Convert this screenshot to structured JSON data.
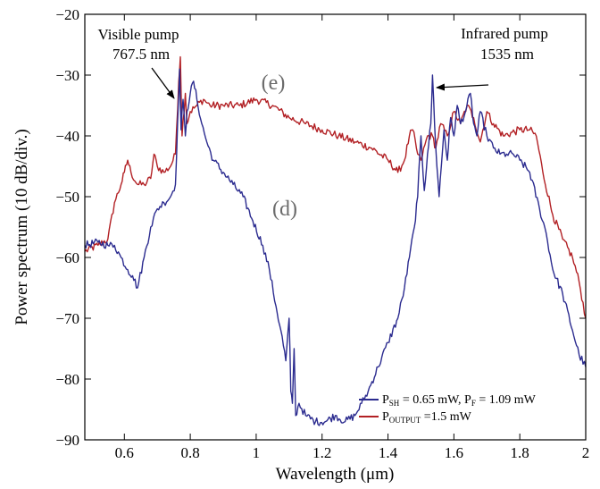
{
  "chart_data": {
    "type": "line",
    "xlabel": "Wavelength (μm)",
    "ylabel": "Power spectrum (10 dB/div.)",
    "xlim": [
      0.48,
      2.0
    ],
    "ylim": [
      -90,
      -20
    ],
    "xticks": [
      {
        "v": 0.6,
        "label": "0.6"
      },
      {
        "v": 0.8,
        "label": "0.8"
      },
      {
        "v": 1.0,
        "label": "1"
      },
      {
        "v": 1.2,
        "label": "1.2"
      },
      {
        "v": 1.4,
        "label": "1.4"
      },
      {
        "v": 1.6,
        "label": "1.6"
      },
      {
        "v": 1.8,
        "label": "1.8"
      },
      {
        "v": 2.0,
        "label": "2"
      }
    ],
    "yticks": [
      {
        "v": -20,
        "label": "−20"
      },
      {
        "v": -30,
        "label": "−30"
      },
      {
        "v": -40,
        "label": "−40"
      },
      {
        "v": -50,
        "label": "−50"
      },
      {
        "v": -60,
        "label": "−60"
      },
      {
        "v": -70,
        "label": "−70"
      },
      {
        "v": -80,
        "label": "−80"
      },
      {
        "v": -90,
        "label": "−90"
      }
    ],
    "grid": false,
    "series": [
      {
        "id": "d",
        "color": "#2b2b8f",
        "x": [
          0.48,
          0.52,
          0.55,
          0.57,
          0.59,
          0.61,
          0.625,
          0.64,
          0.66,
          0.68,
          0.7,
          0.72,
          0.74,
          0.755,
          0.765,
          0.7675,
          0.772,
          0.778,
          0.785,
          0.79,
          0.8,
          0.81,
          0.82,
          0.835,
          0.85,
          0.87,
          0.9,
          0.93,
          0.96,
          0.99,
          1.02,
          1.04,
          1.06,
          1.075,
          1.09,
          1.1,
          1.105,
          1.11,
          1.115,
          1.12,
          1.13,
          1.15,
          1.18,
          1.21,
          1.24,
          1.27,
          1.3,
          1.32,
          1.34,
          1.37,
          1.4,
          1.43,
          1.45,
          1.465,
          1.48,
          1.49,
          1.5,
          1.51,
          1.52,
          1.53,
          1.535,
          1.545,
          1.555,
          1.57,
          1.58,
          1.59,
          1.6,
          1.61,
          1.62,
          1.635,
          1.65,
          1.66,
          1.67,
          1.68,
          1.7,
          1.72,
          1.74,
          1.76,
          1.78,
          1.8,
          1.83,
          1.86,
          1.88,
          1.9,
          1.93,
          1.96,
          1.98,
          2.0
        ],
        "y": [
          -58,
          -57.5,
          -58,
          -58,
          -60,
          -62,
          -63,
          -65,
          -60,
          -55,
          -52,
          -51,
          -50,
          -48,
          -33,
          -29,
          -39,
          -34,
          -40,
          -36,
          -33,
          -31,
          -34,
          -38,
          -41,
          -44,
          -46,
          -48,
          -50,
          -54,
          -58,
          -62,
          -68,
          -72,
          -77,
          -70,
          -82,
          -84,
          -75,
          -86,
          -84,
          -86,
          -87,
          -87,
          -86,
          -87,
          -86,
          -84,
          -82,
          -78,
          -74,
          -70,
          -65,
          -60,
          -55,
          -50,
          -40,
          -49,
          -43,
          -38,
          -30,
          -42,
          -50,
          -39,
          -44,
          -37,
          -40,
          -35,
          -38,
          -36,
          -33,
          -38,
          -40,
          -36,
          -40,
          -42,
          -43,
          -43,
          -43,
          -44,
          -46,
          -52,
          -56,
          -62,
          -66,
          -72,
          -76,
          -78
        ]
      },
      {
        "id": "e",
        "color": "#b22024",
        "x": [
          0.48,
          0.52,
          0.55,
          0.57,
          0.59,
          0.6,
          0.61,
          0.62,
          0.64,
          0.66,
          0.68,
          0.69,
          0.7,
          0.72,
          0.74,
          0.755,
          0.765,
          0.77,
          0.775,
          0.785,
          0.79,
          0.8,
          0.82,
          0.84,
          0.86,
          0.9,
          0.95,
          1.0,
          1.05,
          1.1,
          1.15,
          1.2,
          1.25,
          1.3,
          1.35,
          1.4,
          1.43,
          1.45,
          1.465,
          1.475,
          1.49,
          1.5,
          1.52,
          1.535,
          1.545,
          1.56,
          1.58,
          1.6,
          1.62,
          1.64,
          1.66,
          1.68,
          1.7,
          1.72,
          1.75,
          1.8,
          1.83,
          1.85,
          1.87,
          1.9,
          1.93,
          1.96,
          1.98,
          2.0
        ],
        "y": [
          -59,
          -58,
          -57,
          -51,
          -48,
          -46,
          -44,
          -46,
          -48,
          -48,
          -47,
          -43,
          -45,
          -46,
          -45,
          -43,
          -31,
          -27,
          -40,
          -33,
          -38,
          -36,
          -35,
          -34,
          -35,
          -35,
          -35,
          -34,
          -35,
          -37,
          -38,
          -39,
          -40,
          -41,
          -42,
          -44,
          -46,
          -44,
          -40,
          -39,
          -43,
          -44,
          -40,
          -40,
          -42,
          -38,
          -40,
          -36,
          -38,
          -35,
          -37,
          -41,
          -36,
          -38,
          -40,
          -39,
          -39,
          -40,
          -46,
          -53,
          -57,
          -60,
          -64,
          -70
        ]
      }
    ],
    "annotations": {
      "visible_pump_line1": "Visible pump",
      "visible_pump_line2": "767.5 nm",
      "infrared_pump_line1": "Infrared pump",
      "infrared_pump_line2": "1535 nm",
      "label_e": "(e)",
      "label_d": "(d)"
    },
    "legend": {
      "placement": "bottom-right",
      "entries": [
        {
          "series": "d",
          "p1": "P",
          "sub1": "SH",
          "mid": " = 0.65 mW, P",
          "sub2": "F",
          "tail": " = 1.09 mW"
        },
        {
          "series": "e",
          "p1": "P",
          "sub1": "OUTPUT",
          "mid": " =1.5 mW",
          "sub2": "",
          "tail": ""
        }
      ]
    }
  }
}
